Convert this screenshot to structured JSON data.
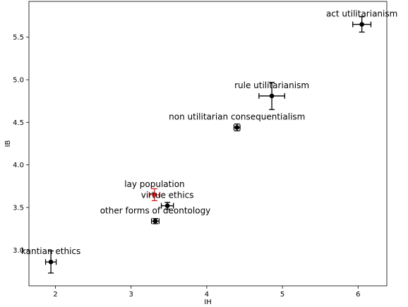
{
  "chart_data": {
    "type": "scatter",
    "xlabel": "IH",
    "ylabel": "IB",
    "xlim": [
      1.65,
      6.38
    ],
    "ylim": [
      2.58,
      5.92
    ],
    "xticks": [
      2,
      3,
      4,
      5,
      6
    ],
    "yticks": [
      3.0,
      3.5,
      4.0,
      4.5,
      5.0,
      5.5
    ],
    "xtick_labels": [
      "2",
      "3",
      "4",
      "5",
      "6"
    ],
    "ytick_labels": [
      "3.0",
      "3.5",
      "4.0",
      "4.5",
      "5.0",
      "5.5"
    ],
    "grid": false,
    "points": [
      {
        "label": "act utilitarianism",
        "x": 6.05,
        "y": 5.65,
        "xerr": 0.12,
        "yerr": 0.09,
        "color": "#000000"
      },
      {
        "label": "rule utilitarianism",
        "x": 4.86,
        "y": 4.81,
        "xerr": 0.17,
        "yerr": 0.16,
        "color": "#000000"
      },
      {
        "label": "non utilitarian consequentialism",
        "x": 4.4,
        "y": 4.44,
        "xerr": 0.04,
        "yerr": 0.04,
        "color": "#000000"
      },
      {
        "label": "lay population",
        "x": 3.31,
        "y": 3.65,
        "xerr": 0.07,
        "yerr": 0.07,
        "color": "#e41a1c"
      },
      {
        "label": "virtue ethics",
        "x": 3.48,
        "y": 3.52,
        "xerr": 0.08,
        "yerr": 0.04,
        "color": "#000000"
      },
      {
        "label": "other forms of deontology",
        "x": 3.32,
        "y": 3.34,
        "xerr": 0.05,
        "yerr": 0.03,
        "color": "#000000"
      },
      {
        "label": "kantian ethics",
        "x": 1.94,
        "y": 2.86,
        "xerr": 0.07,
        "yerr": 0.13,
        "color": "#000000"
      }
    ]
  }
}
